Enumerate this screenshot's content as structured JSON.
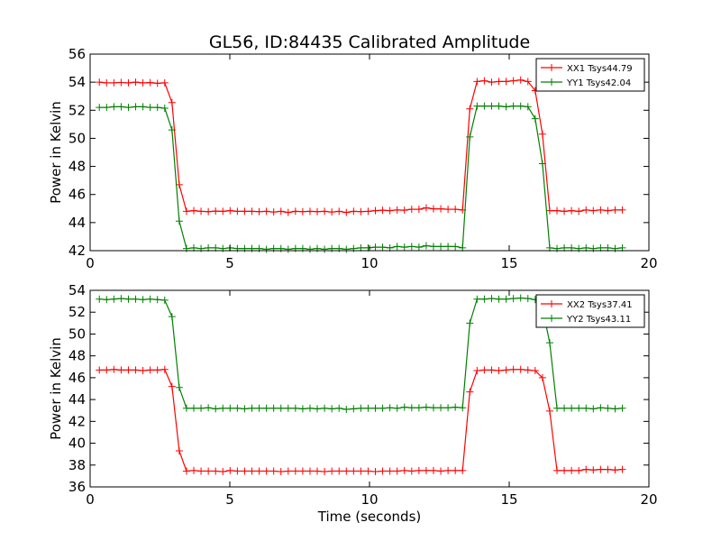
{
  "figure": {
    "title": "GL56, ID:84435 Calibrated Amplitude",
    "xlabel": "Time (seconds)"
  },
  "colors": {
    "xx": "#ff0000",
    "yy": "#008000"
  },
  "chart_data": [
    {
      "type": "line",
      "title": "GL56, ID:84435 Calibrated Amplitude",
      "xlabel": "",
      "ylabel": "Power in Kelvin",
      "xlim": [
        0,
        20
      ],
      "ylim": [
        42,
        56
      ],
      "xticks": [
        0,
        5,
        10,
        15,
        20
      ],
      "yticks": [
        42,
        44,
        46,
        48,
        50,
        52,
        54,
        56
      ],
      "grid": false,
      "legend": "top-right",
      "x": [
        0.33,
        0.59,
        0.85,
        1.11,
        1.37,
        1.63,
        1.89,
        2.15,
        2.41,
        2.67,
        2.93,
        3.19,
        3.45,
        3.71,
        3.97,
        4.23,
        4.49,
        4.75,
        5.01,
        5.27,
        5.53,
        5.79,
        6.05,
        6.31,
        6.57,
        6.83,
        7.09,
        7.35,
        7.61,
        7.87,
        8.13,
        8.39,
        8.65,
        8.91,
        9.17,
        9.43,
        9.69,
        9.95,
        10.21,
        10.47,
        10.73,
        10.99,
        11.25,
        11.51,
        11.77,
        12.03,
        12.29,
        12.55,
        12.81,
        13.07,
        13.33,
        13.59,
        13.85,
        14.11,
        14.37,
        14.63,
        14.89,
        15.15,
        15.41,
        15.67,
        15.93,
        16.19,
        16.45,
        16.71,
        16.97,
        17.23,
        17.49,
        17.75,
        18.01,
        18.27,
        18.53,
        18.79,
        19.05
      ],
      "series": [
        {
          "name": "XX1 Tsys44.79",
          "color": "#ff0000",
          "values": [
            54.0,
            53.95,
            53.95,
            53.98,
            53.95,
            54.0,
            53.95,
            53.97,
            53.92,
            53.95,
            52.55,
            46.7,
            44.8,
            44.85,
            44.8,
            44.78,
            44.82,
            44.8,
            44.85,
            44.8,
            44.8,
            44.8,
            44.78,
            44.8,
            44.75,
            44.8,
            44.72,
            44.8,
            44.78,
            44.8,
            44.78,
            44.8,
            44.75,
            44.8,
            44.72,
            44.8,
            44.78,
            44.8,
            44.85,
            44.88,
            44.85,
            44.9,
            44.88,
            44.95,
            44.95,
            45.05,
            44.98,
            44.98,
            44.95,
            44.95,
            44.9,
            52.1,
            54.05,
            54.1,
            54.0,
            54.05,
            54.05,
            54.1,
            54.15,
            54.05,
            53.4,
            50.3,
            44.85,
            44.85,
            44.8,
            44.85,
            44.8,
            44.9,
            44.85,
            44.9,
            44.85,
            44.9,
            44.9
          ]
        },
        {
          "name": "YY1 Tsys42.04",
          "color": "#008000",
          "values": [
            52.2,
            52.2,
            52.25,
            52.25,
            52.2,
            52.25,
            52.25,
            52.2,
            52.2,
            52.15,
            50.6,
            44.1,
            42.15,
            42.2,
            42.15,
            42.2,
            42.2,
            42.15,
            42.2,
            42.15,
            42.15,
            42.15,
            42.15,
            42.1,
            42.15,
            42.15,
            42.1,
            42.15,
            42.15,
            42.1,
            42.15,
            42.1,
            42.15,
            42.15,
            42.1,
            42.15,
            42.2,
            42.2,
            42.25,
            42.25,
            42.2,
            42.3,
            42.25,
            42.3,
            42.25,
            42.35,
            42.3,
            42.3,
            42.3,
            42.3,
            42.2,
            50.1,
            52.3,
            52.3,
            52.3,
            52.3,
            52.25,
            52.3,
            52.3,
            52.25,
            51.4,
            48.2,
            42.2,
            42.15,
            42.2,
            42.2,
            42.15,
            42.2,
            42.15,
            42.2,
            42.2,
            42.15,
            42.2
          ]
        }
      ]
    },
    {
      "type": "line",
      "title": "",
      "xlabel": "Time (seconds)",
      "ylabel": "Power in Kelvin",
      "xlim": [
        0,
        20
      ],
      "ylim": [
        36,
        54
      ],
      "xticks": [
        0,
        5,
        10,
        15,
        20
      ],
      "yticks": [
        36,
        38,
        40,
        42,
        44,
        46,
        48,
        50,
        52,
        54
      ],
      "grid": false,
      "legend": "top-right",
      "x": [
        0.33,
        0.59,
        0.85,
        1.11,
        1.37,
        1.63,
        1.89,
        2.15,
        2.41,
        2.67,
        2.93,
        3.19,
        3.45,
        3.71,
        3.97,
        4.23,
        4.49,
        4.75,
        5.01,
        5.27,
        5.53,
        5.79,
        6.05,
        6.31,
        6.57,
        6.83,
        7.09,
        7.35,
        7.61,
        7.87,
        8.13,
        8.39,
        8.65,
        8.91,
        9.17,
        9.43,
        9.69,
        9.95,
        10.21,
        10.47,
        10.73,
        10.99,
        11.25,
        11.51,
        11.77,
        12.03,
        12.29,
        12.55,
        12.81,
        13.07,
        13.33,
        13.59,
        13.85,
        14.11,
        14.37,
        14.63,
        14.89,
        15.15,
        15.41,
        15.67,
        15.93,
        16.19,
        16.45,
        16.71,
        16.97,
        17.23,
        17.49,
        17.75,
        18.01,
        18.27,
        18.53,
        18.79,
        19.05
      ],
      "series": [
        {
          "name": "XX2 Tsys37.41",
          "color": "#ff0000",
          "values": [
            46.7,
            46.7,
            46.75,
            46.7,
            46.7,
            46.7,
            46.65,
            46.7,
            46.7,
            46.75,
            45.2,
            39.3,
            37.45,
            37.5,
            37.45,
            37.45,
            37.45,
            37.4,
            37.5,
            37.45,
            37.45,
            37.45,
            37.45,
            37.45,
            37.45,
            37.4,
            37.45,
            37.45,
            37.45,
            37.45,
            37.45,
            37.4,
            37.45,
            37.45,
            37.45,
            37.45,
            37.45,
            37.45,
            37.4,
            37.45,
            37.45,
            37.45,
            37.5,
            37.45,
            37.5,
            37.5,
            37.5,
            37.45,
            37.5,
            37.5,
            37.5,
            44.7,
            46.65,
            46.7,
            46.7,
            46.65,
            46.7,
            46.75,
            46.75,
            46.7,
            46.65,
            46.0,
            42.95,
            37.5,
            37.5,
            37.5,
            37.5,
            37.6,
            37.55,
            37.6,
            37.6,
            37.55,
            37.6
          ]
        },
        {
          "name": "YY2 Tsys43.11",
          "color": "#008000",
          "values": [
            53.2,
            53.15,
            53.2,
            53.25,
            53.2,
            53.2,
            53.15,
            53.2,
            53.15,
            53.1,
            51.6,
            45.1,
            43.2,
            43.2,
            43.2,
            43.25,
            43.15,
            43.2,
            43.2,
            43.2,
            43.15,
            43.2,
            43.2,
            43.2,
            43.2,
            43.2,
            43.2,
            43.2,
            43.15,
            43.2,
            43.15,
            43.2,
            43.15,
            43.2,
            43.1,
            43.15,
            43.2,
            43.2,
            43.2,
            43.2,
            43.25,
            43.2,
            43.3,
            43.25,
            43.25,
            43.3,
            43.25,
            43.25,
            43.25,
            43.3,
            43.25,
            51.0,
            53.2,
            53.2,
            53.25,
            53.2,
            53.2,
            53.25,
            53.3,
            53.25,
            53.15,
            52.4,
            49.2,
            43.2,
            43.2,
            43.2,
            43.2,
            43.2,
            43.15,
            43.25,
            43.2,
            43.15,
            43.2
          ]
        }
      ]
    }
  ]
}
